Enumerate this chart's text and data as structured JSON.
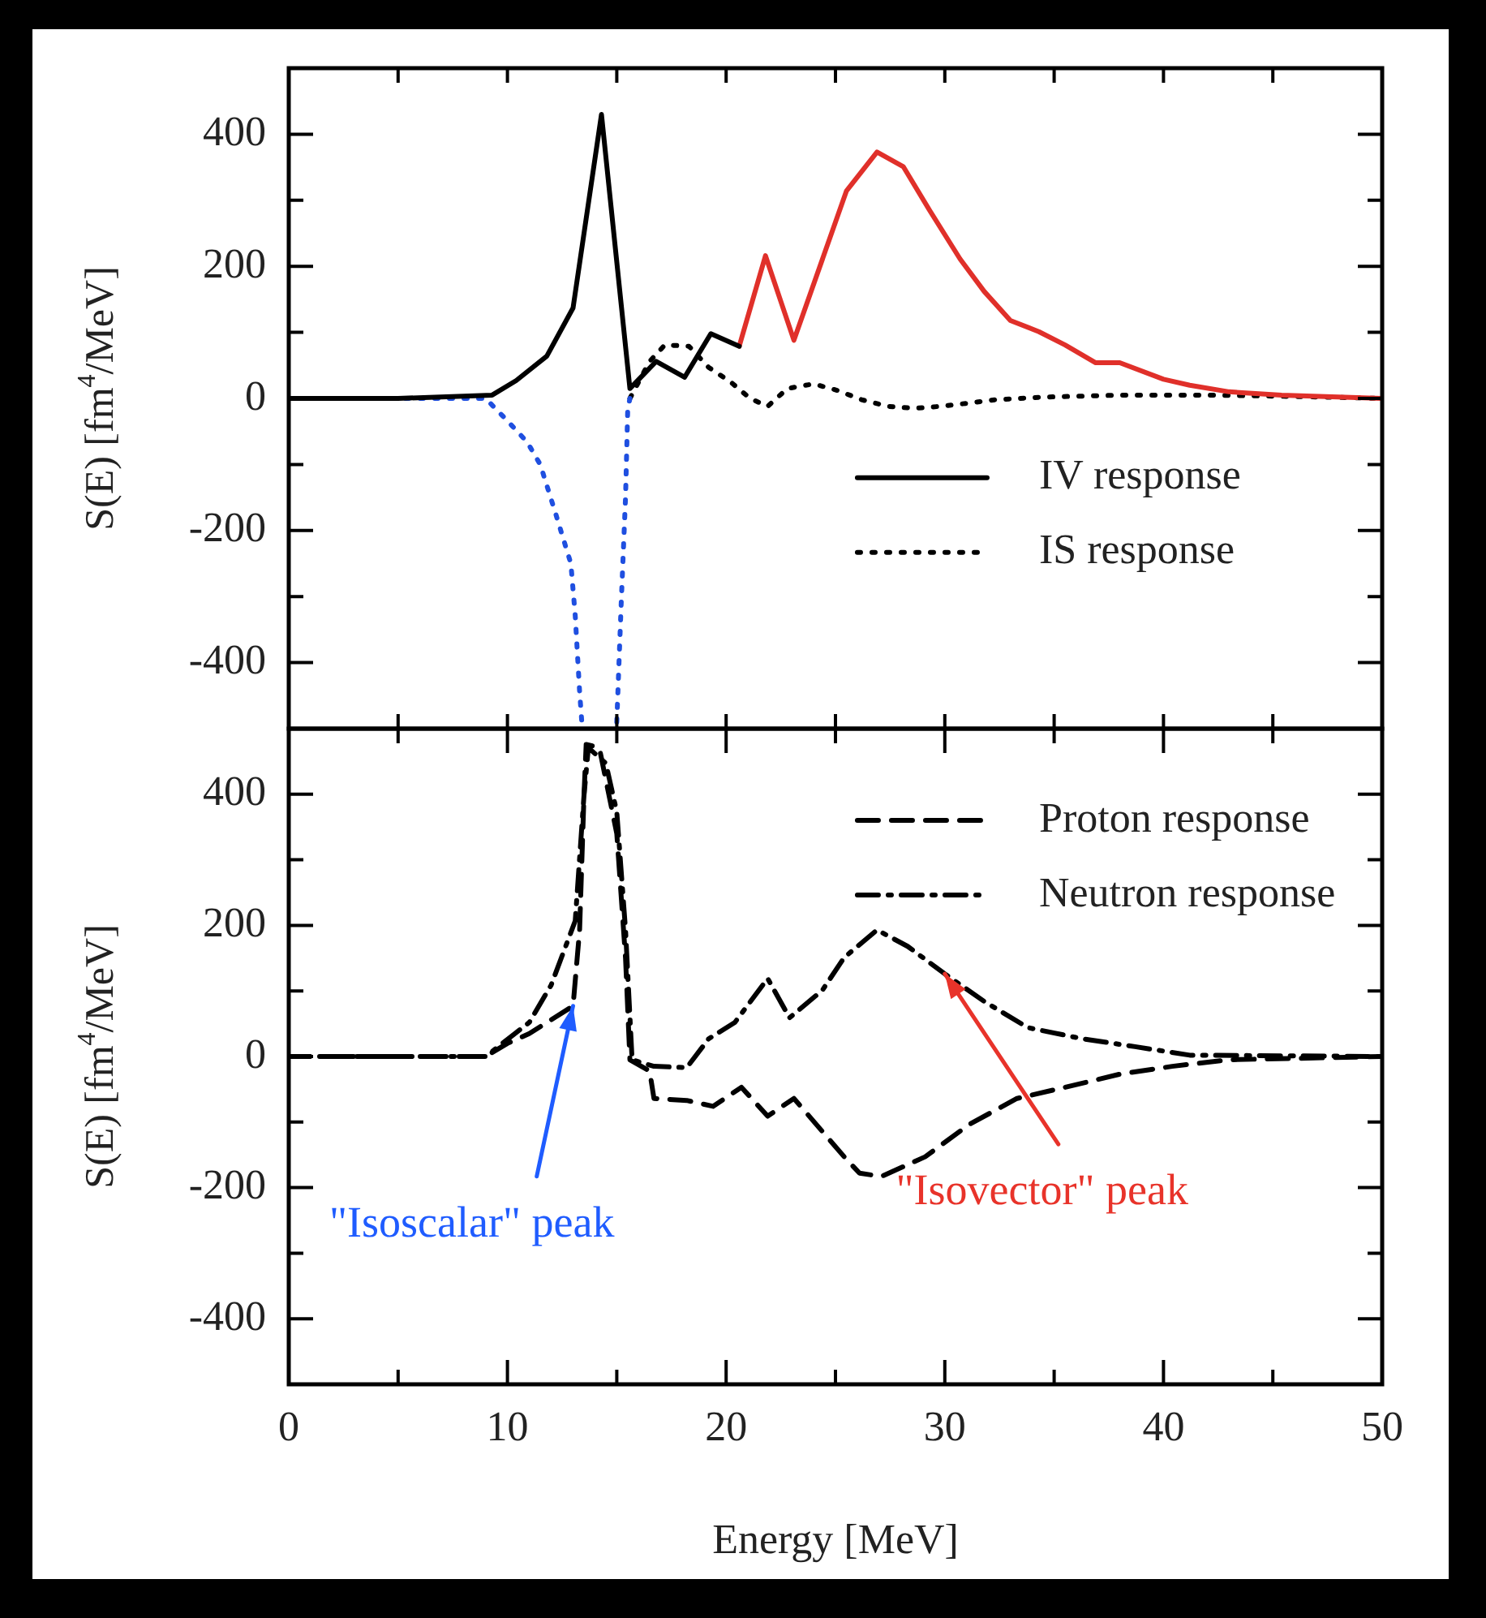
{
  "chart_data": [
    {
      "type": "line",
      "ylabel": "S(E) [fm$^{4}$/MeV]",
      "xlim": [
        0,
        50
      ],
      "ylim": [
        -500,
        500
      ],
      "xticks": [
        0,
        {
          "value": 5,
          "label": null
        },
        {
          "value": 10,
          "label": null
        },
        {
          "value": 15,
          "label": null
        },
        {
          "value": 20,
          "label": null
        },
        {
          "value": 25,
          "label": null
        },
        {
          "value": 30,
          "label": null
        },
        {
          "value": 35,
          "label": null
        },
        {
          "value": 40,
          "label": null
        },
        {
          "value": 45,
          "label": null
        },
        {
          "value": 50,
          "label": null
        }
      ],
      "yticks": [
        -400,
        {
          "value": -300,
          "label": null
        },
        -200,
        {
          "value": -100,
          "label": null
        },
        0,
        {
          "value": 100,
          "label": null
        },
        200,
        {
          "value": 300,
          "label": null
        },
        400
      ],
      "tick_labels": "y",
      "legend": "right",
      "grid": false,
      "series": [
        {
          "name": "IV response",
          "color": "#000000",
          "line_style": "solid",
          "x": [
            0,
            5,
            9.3,
            10.4,
            11.8,
            13.0,
            14.3,
            15.6,
            16.8,
            18.1,
            19.3,
            20.6
          ],
          "values": [
            0,
            0,
            5,
            27,
            64,
            137,
            430,
            15,
            56,
            32,
            98,
            79
          ]
        },
        {
          "color": "#e0302a",
          "line_style": "solid",
          "x": [
            20.6,
            21.8,
            23.1,
            25.5,
            26.9,
            28.1,
            29.3,
            30.7,
            31.8,
            33.0,
            34.3,
            35.5,
            36.9,
            38.0,
            40.0,
            41.2,
            43.0,
            45.4,
            50
          ],
          "values": [
            79,
            216,
            88,
            314,
            373,
            351,
            285,
            211,
            162,
            118,
            101,
            81,
            54,
            54,
            29,
            20,
            10,
            5,
            0
          ]
        },
        {
          "color": "#1f4fe0",
          "line_style": "dotted",
          "x": [
            0,
            5,
            9,
            10,
            10.9,
            11.5,
            12.2,
            12.9,
            13.1,
            13.3,
            13.4,
            14.2,
            15.0,
            15.2,
            15.4,
            15.5,
            15.6
          ],
          "values": [
            0,
            0,
            0,
            -34,
            -66,
            -100,
            -174,
            -250,
            -329,
            -444,
            -490,
            null,
            -490,
            -312,
            -150,
            -17,
            0
          ]
        },
        {
          "name": "IS response",
          "color": "#000000",
          "line_style": "dotted",
          "x": [
            15.6,
            16.5,
            17.2,
            18.3,
            19.2,
            20.2,
            21.1,
            21.9,
            22.8,
            24.0,
            25.1,
            26.2,
            27.4,
            28.6,
            29.8,
            31.1,
            32.3,
            34.5,
            38,
            42,
            46,
            50
          ],
          "values": [
            0,
            56,
            81,
            79,
            47,
            25,
            0,
            -12,
            15,
            22,
            12,
            -2,
            -12,
            -15,
            -12,
            -7,
            -2,
            2,
            5,
            5,
            3,
            0
          ]
        }
      ]
    },
    {
      "type": "line",
      "xlabel": "Energy [MeV]",
      "ylabel": "S(E) [fm$^{4}$/MeV]",
      "xlim": [
        0,
        50
      ],
      "ylim": [
        -500,
        500
      ],
      "xticks": [
        0,
        {
          "value": 5,
          "label": null
        },
        10,
        {
          "value": 15,
          "label": null
        },
        20,
        {
          "value": 25,
          "label": null
        },
        30,
        {
          "value": 35,
          "label": null
        },
        40,
        {
          "value": 45,
          "label": null
        },
        50
      ],
      "yticks": [
        -400,
        {
          "value": -300,
          "label": null
        },
        -200,
        {
          "value": -100,
          "label": null
        },
        0,
        {
          "value": 100,
          "label": null
        },
        200,
        {
          "value": 300,
          "label": null
        },
        400
      ],
      "legend": "top right",
      "grid": false,
      "annotations": [
        {
          "text": "\"Isoscalar\" peak",
          "x": 13,
          "y": 77
        },
        {
          "text": "\"Isovector\" peak",
          "x": 30,
          "y": 126
        }
      ],
      "series": [
        {
          "name": "Proton response",
          "color": "#000000",
          "line_style": "dashed",
          "x": [
            0,
            5,
            9,
            10,
            11,
            13,
            13.3,
            13.5,
            13.6,
            14.2,
            15.0,
            15.4,
            15.6,
            16.5,
            16.7,
            18.2,
            19.4,
            20.7,
            21.9,
            23.1,
            25.4,
            26.1,
            27.1,
            29.1,
            31.1,
            33.3,
            35.5,
            38,
            40.4,
            43,
            50
          ],
          "values": [
            0,
            0,
            0,
            20,
            35,
            77,
            193,
            398,
            476,
            471,
            340,
            150,
            -5,
            -22,
            -64,
            -67,
            -76,
            -47,
            -91,
            -64,
            -153,
            -178,
            -183,
            -153,
            -104,
            -64,
            -47,
            -27,
            -15,
            -5,
            0
          ]
        },
        {
          "name": "Neutron response",
          "color": "#000000",
          "line_style": "dashdot",
          "x": [
            0,
            5,
            9,
            11,
            12,
            13.1,
            13.5,
            13.7,
            14.5,
            15.0,
            15.4,
            15.7,
            16.7,
            18.2,
            19.2,
            20.4,
            21.9,
            22.9,
            24.4,
            25.4,
            26.9,
            28.3,
            30,
            31.8,
            33.8,
            36.3,
            38.7,
            41.2,
            50
          ],
          "values": [
            0,
            0,
            0,
            52,
            109,
            207,
            398,
            471,
            447,
            373,
            193,
            -5,
            -15,
            -17,
            27,
            52,
            119,
            59,
            101,
            151,
            193,
            168,
            126,
            84,
            44,
            27,
            15,
            2,
            0
          ]
        }
      ]
    }
  ]
}
